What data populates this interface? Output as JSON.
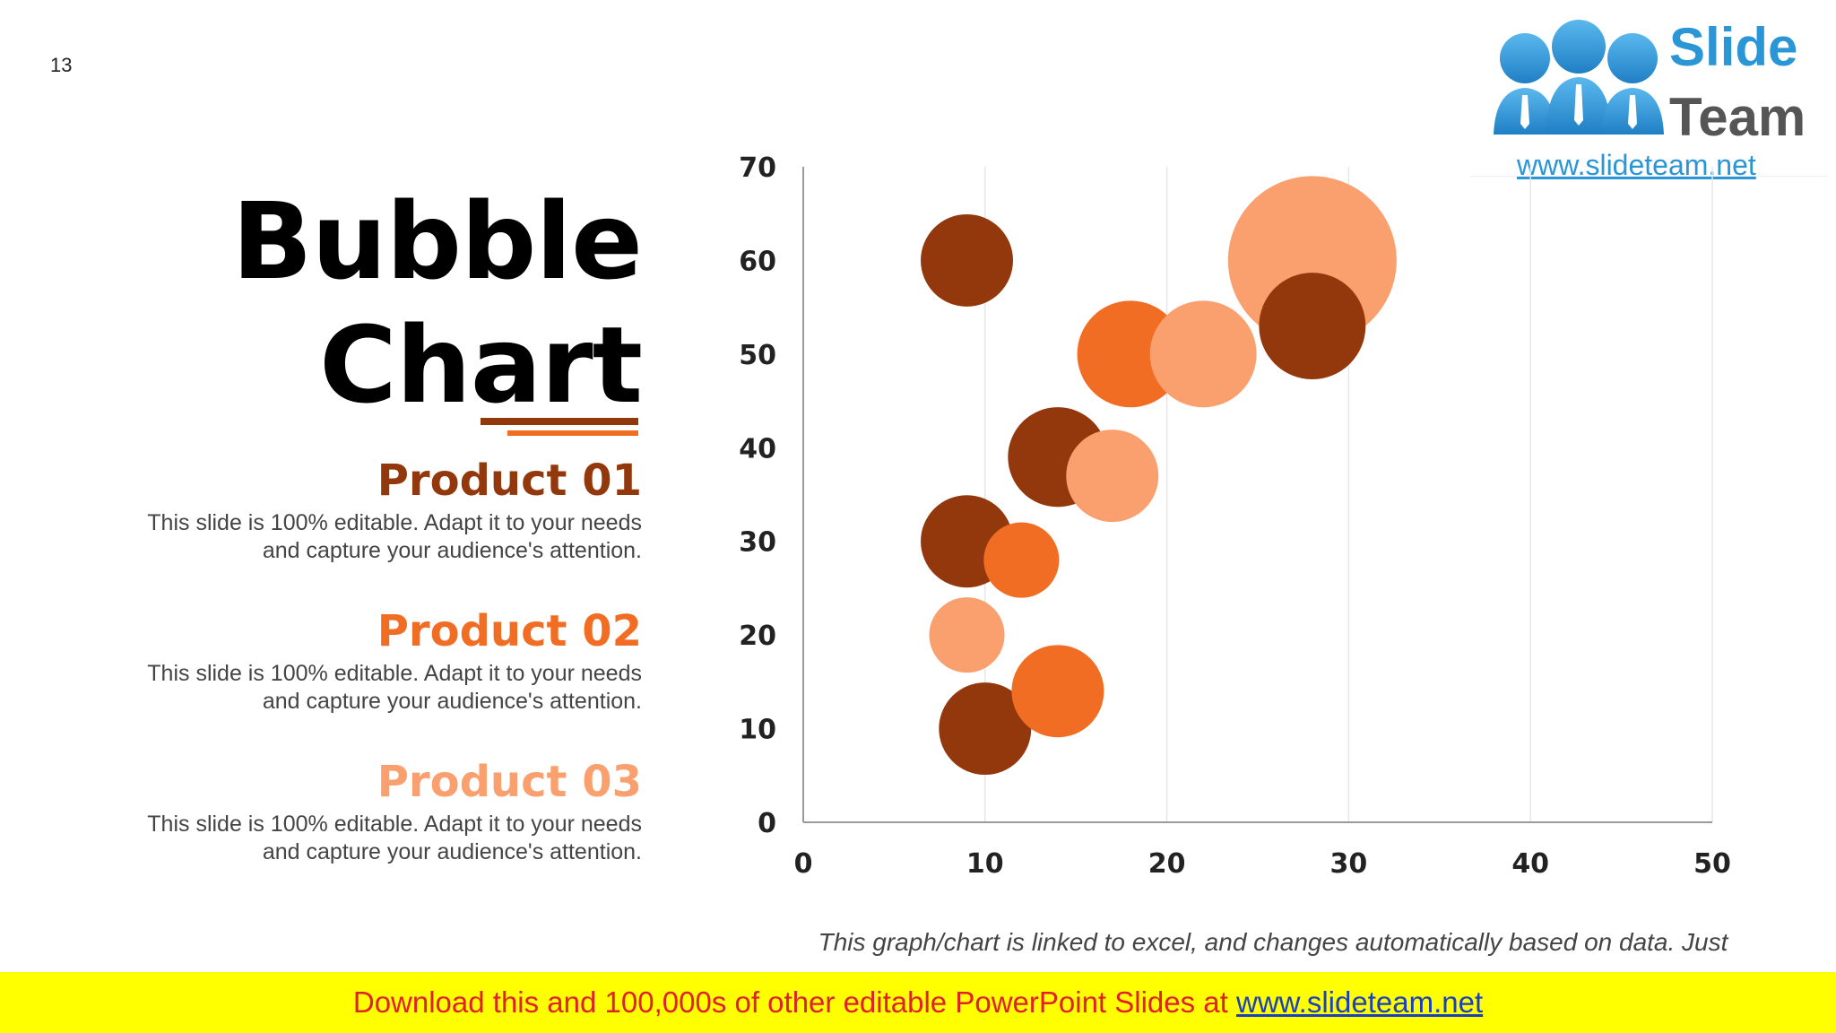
{
  "slide_number": "13",
  "title_line1": "Bubble",
  "title_line2": "Chart",
  "products": [
    {
      "name": "Product 01",
      "desc1": "This slide is 100% editable. Adapt it to your needs",
      "desc2": "and capture your audience's attention.",
      "color": "#93380c"
    },
    {
      "name": "Product 02",
      "desc1": "This slide is 100% editable. Adapt it to your needs",
      "desc2": "and capture your audience's attention.",
      "color": "#f26d24"
    },
    {
      "name": "Product 03",
      "desc1": "This slide is 100% editable. Adapt it to your needs",
      "desc2": "and capture your audience's attention.",
      "color": "#f9a06e"
    }
  ],
  "logo": {
    "word1": "Slide",
    "word2": "Team",
    "url": "www.slideteam.net",
    "icon": "people-icon"
  },
  "note": "This graph/chart is linked to excel, and changes automatically based on data. Just left click on it and select “Edit Data”.",
  "banner": {
    "text": "Download this and 100,000s of other editable PowerPoint Slides at ",
    "link": "www.slideteam.net"
  },
  "chart_data": {
    "type": "bubble",
    "xlim": [
      0,
      50
    ],
    "ylim": [
      0,
      70
    ],
    "xticks": [
      "0",
      "10",
      "20",
      "30",
      "40",
      "50"
    ],
    "yticks": [
      "0",
      "10",
      "20",
      "30",
      "40",
      "50",
      "60",
      "70"
    ],
    "grid": "vertical",
    "series": [
      {
        "name": "Product 01",
        "color": "#93380c",
        "points": [
          {
            "x": 9,
            "y": 60,
            "size": 6
          },
          {
            "x": 14,
            "y": 39,
            "size": 7
          },
          {
            "x": 28,
            "y": 53,
            "size": 8
          },
          {
            "x": 9,
            "y": 30,
            "size": 6
          },
          {
            "x": 10,
            "y": 10,
            "size": 6
          }
        ]
      },
      {
        "name": "Product 02",
        "color": "#f26d24",
        "points": [
          {
            "x": 18,
            "y": 50,
            "size": 8
          },
          {
            "x": 12,
            "y": 28,
            "size": 4
          },
          {
            "x": 14,
            "y": 14,
            "size": 6
          }
        ]
      },
      {
        "name": "Product 03",
        "color": "#f9a06e",
        "points": [
          {
            "x": 28,
            "y": 60,
            "size": 20
          },
          {
            "x": 22,
            "y": 50,
            "size": 8
          },
          {
            "x": 17,
            "y": 37,
            "size": 6
          },
          {
            "x": 9,
            "y": 20,
            "size": 4
          }
        ]
      }
    ]
  }
}
